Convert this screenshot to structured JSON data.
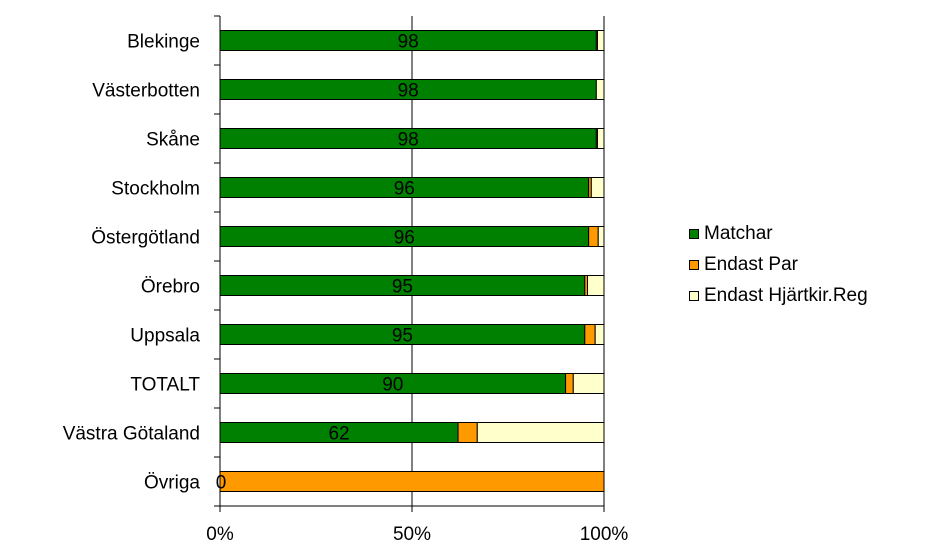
{
  "chart_data": {
    "type": "bar",
    "orientation": "horizontal",
    "stacked": "percent",
    "categories": [
      "Blekinge",
      "Västerbotten",
      "Skåne",
      "Stockholm",
      "Östergötland",
      "Örebro",
      "Uppsala",
      "TOTALT",
      "Västra Götaland",
      "Övriga"
    ],
    "series": [
      {
        "name": "Matchar",
        "color": "#008000",
        "values": [
          98,
          98,
          98,
          96,
          96,
          95,
          95,
          90,
          62,
          0
        ]
      },
      {
        "name": "Endast Par",
        "color": "#FF9900",
        "values": [
          0.3,
          0,
          0.3,
          0.7,
          2.5,
          0.7,
          2.7,
          2,
          5,
          100
        ]
      },
      {
        "name": "Endast Hjärtkir.Reg",
        "color": "#FFFFCC",
        "values": [
          1.7,
          2,
          1.7,
          3.3,
          1.5,
          4.3,
          2.3,
          8,
          33,
          0
        ]
      }
    ],
    "data_labels": [
      "98",
      "98",
      "98",
      "96",
      "96",
      "95",
      "95",
      "90",
      "62",
      "0"
    ],
    "x_ticks": [
      "0%",
      "50%",
      "100%"
    ],
    "xlim": [
      0,
      100
    ],
    "grid": "vertical major at 50%",
    "legend_position": "right"
  }
}
